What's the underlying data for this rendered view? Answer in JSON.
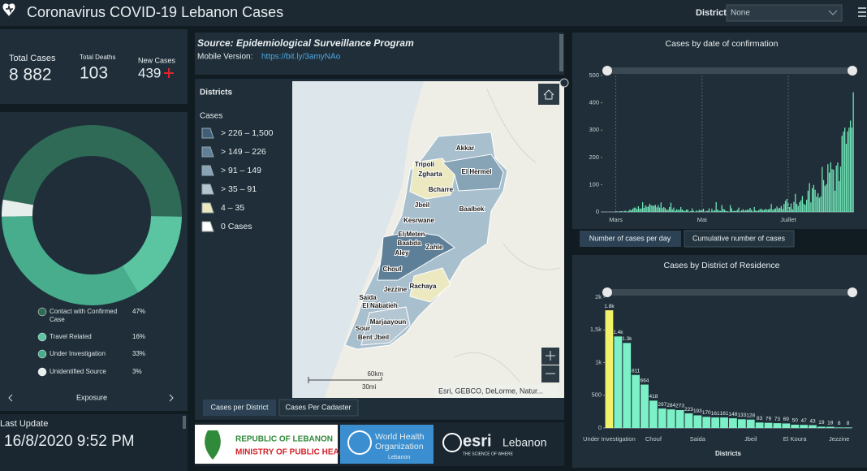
{
  "header": {
    "title": "Coronavirus COVID-19 Lebanon Cases",
    "district_label": "District",
    "district_value": "None"
  },
  "stats": {
    "total_cases": {
      "label": "Total Cases",
      "value": "8 882"
    },
    "total_deaths": {
      "label": "Total Deaths",
      "value": "103"
    },
    "new_cases": {
      "label": "New Cases",
      "value": "439"
    }
  },
  "source": {
    "title": "Source: Epidemiological Surveillance Program",
    "mobile_label": "Mobile Version:",
    "mobile_link": "https://bit.ly/3amyNAo"
  },
  "map": {
    "legend_title": "Districts",
    "legend_subtitle": "Cases",
    "classes": [
      {
        "label": "> 226 – 1,500",
        "color": "#3f5f78"
      },
      {
        "label": "> 149 – 226",
        "color": "#5f8098"
      },
      {
        "label": "> 91 – 149",
        "color": "#87a3b6"
      },
      {
        "label": "> 35 – 91",
        "color": "#b3c6d2"
      },
      {
        "label": "4 – 35",
        "color": "#ece8c0"
      },
      {
        "label": "0 Cases",
        "color": "#ffffff"
      }
    ],
    "labels": [
      "Akkar",
      "Tripoli",
      "Zgharta",
      "El Hermel",
      "Bcharre",
      "Jbeil",
      "Baalbek",
      "Kesrwane",
      "El Meten",
      "Baabda",
      "Zahle",
      "Aley",
      "Chouf",
      "Jezzine",
      "Rachaya",
      "Saida",
      "El Nabatieh",
      "Marjaayoun",
      "Sour",
      "Bent Jbeil"
    ],
    "scale_km": "60km",
    "scale_mi": "30mi",
    "attribution": "Esri, GEBCO, DeLorme, Natur...",
    "tabs": [
      "Cases per District",
      "Cases Per Cadaster"
    ]
  },
  "update": {
    "label": "Last Update",
    "value": "16/8/2020 9:52 PM"
  },
  "logos": {
    "moph_line1": "REPUBLIC OF LEBANON",
    "moph_line2": "MINISTRY OF PUBLIC HEALTH",
    "who_line1": "World Health",
    "who_line2": "Organization",
    "who_line3": "Lebanon",
    "esri_name": "esri",
    "esri_country": "Lebanon",
    "esri_tagline": "THE SCIENCE OF WHERE"
  },
  "chart_data": [
    {
      "type": "pie",
      "categories": [
        "Contact with Confirmed Case",
        "Travel Related",
        "Under Investigation",
        "Unidentified Source"
      ],
      "values": [
        47,
        16,
        33,
        3
      ],
      "value_labels": [
        "47%",
        "16%",
        "33%",
        "3%"
      ],
      "colors": [
        "#2f6a57",
        "#5ac5a0",
        "#47ad8c",
        "#e6efec"
      ],
      "selector": "Exposure"
    },
    {
      "type": "bar",
      "title": "Cases by  date of confirmation",
      "categories": [
        null,
        null,
        null,
        null,
        null,
        null,
        null,
        null,
        null,
        "Mars",
        null,
        null,
        null,
        null,
        null,
        null,
        null,
        null,
        null,
        null,
        null,
        null,
        null,
        null,
        null,
        null,
        null,
        null,
        null,
        null,
        null,
        null,
        null,
        null,
        null,
        null,
        null,
        null,
        null,
        null,
        null,
        null,
        null,
        null,
        null,
        null,
        null,
        null,
        null,
        null,
        null,
        null,
        null,
        null,
        null,
        null,
        null,
        null,
        null,
        null,
        null,
        null,
        null,
        null,
        null,
        null,
        null,
        null,
        null,
        null,
        "Mai",
        null,
        null,
        null,
        null,
        null,
        null,
        null,
        null,
        null,
        null,
        null,
        null,
        null,
        null,
        null,
        null,
        null,
        null,
        null,
        null,
        null,
        null,
        null,
        null,
        null,
        null,
        null,
        null,
        null,
        null,
        null,
        null,
        null,
        null,
        null,
        null,
        null,
        null,
        null,
        null,
        null,
        null,
        null,
        null,
        null,
        null,
        null,
        null,
        null,
        null,
        null,
        null,
        null,
        null,
        null,
        null,
        null,
        null,
        null,
        null,
        "Juillet",
        null,
        null,
        null,
        null,
        null,
        null,
        null,
        null,
        null,
        null,
        null,
        null,
        null,
        null,
        null,
        null,
        null,
        null,
        null,
        null,
        null,
        null,
        null,
        null,
        null,
        null,
        null,
        null,
        null,
        null,
        null,
        null,
        null,
        null,
        null,
        null,
        null,
        null,
        null,
        null,
        null,
        null,
        null,
        null,
        null,
        null
      ],
      "values": [
        1,
        0,
        0,
        0,
        0,
        0,
        1,
        0,
        0,
        3,
        2,
        0,
        3,
        3,
        0,
        4,
        4,
        0,
        4,
        9,
        6,
        12,
        16,
        16,
        10,
        21,
        12,
        13,
        36,
        15,
        24,
        19,
        20,
        30,
        25,
        23,
        23,
        26,
        17,
        25,
        16,
        35,
        14,
        18,
        14,
        7,
        9,
        18,
        34,
        10,
        16,
        4,
        10,
        8,
        8,
        18,
        9,
        5,
        4,
        9,
        8,
        0,
        3,
        13,
        4,
        0,
        6,
        2,
        8,
        6,
        8,
        12,
        0,
        4,
        4,
        13,
        0,
        12,
        3,
        7,
        36,
        9,
        5,
        4,
        25,
        11,
        9,
        3,
        3,
        0,
        25,
        13,
        3,
        5,
        3,
        8,
        16,
        1,
        6,
        10,
        5,
        7,
        8,
        8,
        15,
        8,
        2,
        18,
        6,
        3,
        7,
        10,
        12,
        7,
        8,
        11,
        9,
        9,
        12,
        29,
        8,
        11,
        13,
        20,
        13,
        15,
        22,
        11,
        29,
        41,
        48,
        34,
        18,
        31,
        10,
        37,
        66,
        30,
        22,
        36,
        43,
        58,
        30,
        26,
        45,
        78,
        106,
        35,
        87,
        99,
        81,
        56,
        69,
        52,
        57,
        165,
        117,
        96,
        102,
        175,
        144,
        182,
        157,
        155,
        78,
        170,
        181,
        113,
        166,
        279,
        294,
        309,
        250,
        295,
        309,
        335,
        309,
        439
      ],
      "color": "#6fe3b6",
      "ylim": [
        0,
        500
      ],
      "yticks": [
        0,
        100,
        200,
        300,
        400,
        500
      ],
      "tabs": [
        "Number of cases per day",
        "Cumulative number of cases"
      ]
    },
    {
      "type": "bar",
      "title": "Cases by District of Residence",
      "xlabel": "Districts",
      "categories": [
        "Under Investigation",
        null,
        null,
        null,
        null,
        "Chouf",
        null,
        null,
        null,
        null,
        "Saida",
        null,
        null,
        null,
        null,
        null,
        "Jbeil",
        null,
        null,
        null,
        null,
        "El Koura",
        null,
        null,
        null,
        null,
        "Jezzine",
        null
      ],
      "values": [
        1800,
        1400,
        1300,
        811,
        664,
        418,
        297,
        284,
        273,
        223,
        193,
        170,
        161,
        161,
        148,
        133,
        128,
        83,
        79,
        73,
        69,
        50,
        47,
        43,
        19,
        18,
        8,
        8
      ],
      "value_labels": [
        "1.8k",
        "1.4k",
        "1.3k",
        "811",
        "664",
        "418",
        "297",
        "284",
        "273",
        "223",
        "193",
        "170",
        "161",
        "161",
        "148",
        "133",
        "128",
        "83",
        "79",
        "73",
        "69",
        "50",
        "47",
        "43",
        "19",
        "18",
        "8",
        "8"
      ],
      "colors": [
        "#f2f26a",
        "#7cf0c6",
        "#7cf0c6",
        "#7cf0c6",
        "#7cf0c6",
        "#7cf0c6",
        "#7cf0c6",
        "#7cf0c6",
        "#7cf0c6",
        "#7cf0c6",
        "#7cf0c6",
        "#7cf0c6",
        "#7cf0c6",
        "#7cf0c6",
        "#7cf0c6",
        "#7cf0c6",
        "#7cf0c6",
        "#7cf0c6",
        "#7cf0c6",
        "#7cf0c6",
        "#7cf0c6",
        "#7cf0c6",
        "#7cf0c6",
        "#7cf0c6",
        "#7cf0c6",
        "#7cf0c6",
        "#7cf0c6",
        "#7cf0c6"
      ],
      "ylim": [
        0,
        2000
      ],
      "yticks": [
        0,
        500,
        {
          "value": 1000,
          "label": "1k"
        },
        {
          "value": 1500,
          "label": "1,5k"
        },
        {
          "value": 2000,
          "label": "2k"
        }
      ]
    }
  ]
}
